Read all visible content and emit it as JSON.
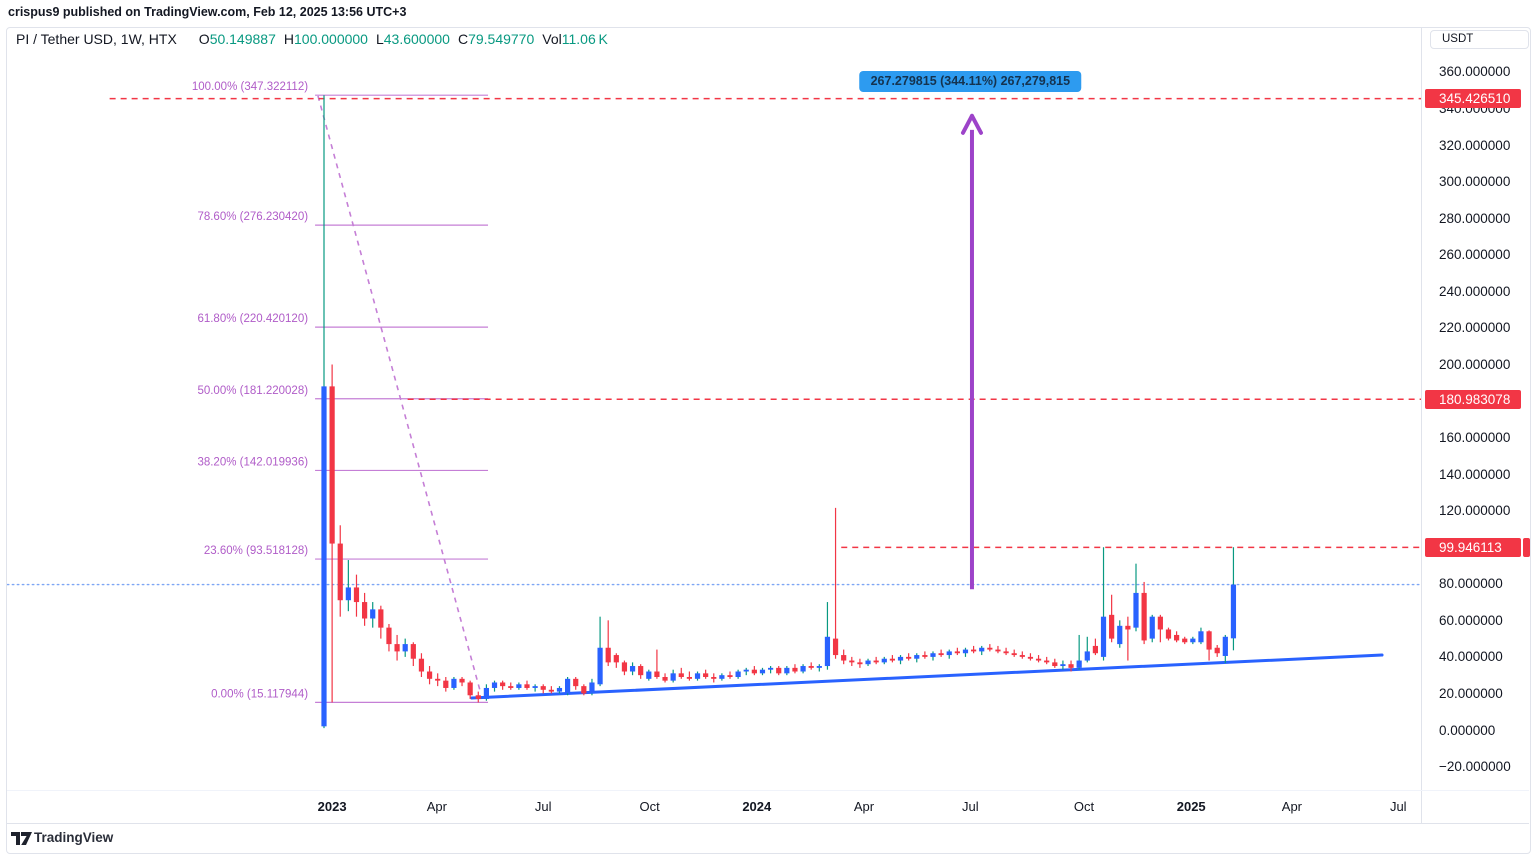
{
  "page": {
    "published_line": "crispus9 published on TradingView.com, Feb 12, 2025 13:56 UTC+3",
    "brand": "TradingView"
  },
  "legend": {
    "symbol": "PI / Tether USD, 1W, HTX",
    "items": [
      {
        "k": "O",
        "v": "50.149887"
      },
      {
        "k": "H",
        "v": "100.000000"
      },
      {
        "k": "L",
        "v": "43.600000"
      },
      {
        "k": "C",
        "v": "79.549770"
      },
      {
        "k": "Vol",
        "v": "11.06 K"
      }
    ]
  },
  "price_axis": {
    "currency_button": "USDT",
    "tick_format_decimals": 6
  },
  "colors": {
    "up_body": "#2962ff",
    "up_wick": "#089981",
    "down": "#f23645",
    "fib_line": "#c57fd6",
    "fib_label": "#b05cc8",
    "ray_red": "#f23645",
    "current_price_line": "#7da6f5",
    "trendline": "#2962ff",
    "arrow": "#9d43c9",
    "callout_bg": "#2d9bf0",
    "badge_bg": "#f23645",
    "axis_text": "#131722",
    "teal_text": "#089981",
    "border": "#e0e3eb"
  },
  "chart_data": {
    "type": "candlestick",
    "title": "PI / Tether USD, 1W, HTX",
    "symbol": "PI/USDT",
    "timeframe": "1W",
    "exchange": "HTX",
    "ylabel": "USDT",
    "ylim": [
      -33,
      384
    ],
    "y_ticks": [
      360,
      340,
      320,
      300,
      280,
      260,
      240,
      220,
      200,
      180,
      160,
      140,
      120,
      100,
      80,
      60,
      40,
      20,
      0,
      -20
    ],
    "time_axis": [
      {
        "label": "2023",
        "week": 1.0,
        "bold": true
      },
      {
        "label": "Apr",
        "week": 13.9,
        "bold": false
      },
      {
        "label": "Jul",
        "week": 27.0,
        "bold": false
      },
      {
        "label": "Oct",
        "week": 40.1,
        "bold": false
      },
      {
        "label": "2024",
        "week": 53.3,
        "bold": true
      },
      {
        "label": "Apr",
        "week": 66.5,
        "bold": false
      },
      {
        "label": "Jul",
        "week": 79.6,
        "bold": false
      },
      {
        "label": "Oct",
        "week": 93.6,
        "bold": false
      },
      {
        "label": "2025",
        "week": 106.8,
        "bold": true
      },
      {
        "label": "Apr",
        "week": 119.2,
        "bold": false
      },
      {
        "label": "Jul",
        "week": 132.3,
        "bold": false
      }
    ],
    "candles": [
      [
        2,
        347.3,
        1,
        188
      ],
      [
        188,
        200,
        15.1,
        102
      ],
      [
        102,
        112,
        62,
        71
      ],
      [
        71,
        93,
        65,
        78
      ],
      [
        78,
        85,
        62,
        70
      ],
      [
        70,
        75,
        57,
        61
      ],
      [
        61,
        70,
        56,
        66
      ],
      [
        66,
        68,
        50,
        56
      ],
      [
        56,
        58,
        43,
        47
      ],
      [
        47,
        52,
        38,
        43
      ],
      [
        43,
        50,
        40,
        47
      ],
      [
        47,
        48,
        35,
        39
      ],
      [
        39,
        42,
        29,
        32
      ],
      [
        32,
        35,
        25,
        28
      ],
      [
        28,
        31,
        24,
        27
      ],
      [
        27,
        29,
        21,
        23
      ],
      [
        23,
        29,
        22,
        28
      ],
      [
        28,
        29,
        24,
        26
      ],
      [
        26,
        27,
        17,
        19
      ],
      [
        19,
        21,
        15.1,
        17
      ],
      [
        17,
        25,
        16,
        23
      ],
      [
        23,
        27,
        21,
        26
      ],
      [
        26,
        27,
        22,
        24
      ],
      [
        24,
        26,
        22,
        23
      ],
      [
        23,
        26,
        22,
        25
      ],
      [
        25,
        27,
        22,
        23
      ],
      [
        23,
        25,
        21,
        24
      ],
      [
        24,
        25,
        20,
        22
      ],
      [
        22,
        24,
        20,
        21
      ],
      [
        21,
        24,
        20,
        23
      ],
      [
        20,
        29,
        19,
        28
      ],
      [
        28,
        29,
        22,
        24
      ],
      [
        24,
        25,
        19,
        20
      ],
      [
        20,
        28,
        19,
        26
      ],
      [
        25,
        62,
        24,
        45
      ],
      [
        45,
        60,
        35,
        37
      ],
      [
        41,
        42,
        34,
        37
      ],
      [
        37,
        38,
        30,
        32
      ],
      [
        32,
        37,
        30,
        35
      ],
      [
        35,
        36,
        28,
        30
      ],
      [
        28,
        33,
        27,
        32
      ],
      [
        32,
        44,
        28,
        29
      ],
      [
        29,
        31,
        26,
        27
      ],
      [
        27,
        33,
        26,
        31
      ],
      [
        31,
        34,
        28,
        29
      ],
      [
        29,
        32,
        27,
        28
      ],
      [
        28,
        32,
        27,
        31
      ],
      [
        31,
        33,
        28,
        29
      ],
      [
        29,
        31,
        26,
        28
      ],
      [
        28,
        31,
        27,
        30
      ],
      [
        30,
        32,
        28,
        29
      ],
      [
        29,
        33,
        28,
        32
      ],
      [
        32,
        34,
        30,
        33
      ],
      [
        33,
        35,
        30,
        31
      ],
      [
        31,
        34,
        30,
        33
      ],
      [
        33,
        35,
        31,
        34
      ],
      [
        34,
        35,
        30,
        31
      ],
      [
        31,
        35,
        30,
        34
      ],
      [
        34,
        36,
        31,
        32
      ],
      [
        32,
        36,
        31,
        35
      ],
      [
        35,
        37,
        33,
        34
      ],
      [
        34,
        36,
        32,
        35
      ],
      [
        35,
        70,
        33,
        51
      ],
      [
        50,
        121.5,
        39,
        41
      ],
      [
        41,
        44,
        36,
        38
      ],
      [
        38,
        40,
        35,
        37
      ],
      [
        37,
        39,
        34,
        36
      ],
      [
        36,
        39,
        35,
        38
      ],
      [
        38,
        40,
        36,
        37
      ],
      [
        37,
        40,
        36,
        39
      ],
      [
        39,
        41,
        37,
        38
      ],
      [
        38,
        41,
        36,
        40
      ],
      [
        40,
        42,
        38,
        39
      ],
      [
        39,
        42,
        37,
        41
      ],
      [
        41,
        43,
        39,
        40
      ],
      [
        40,
        43,
        38,
        42
      ],
      [
        42,
        44,
        40,
        41
      ],
      [
        41,
        44,
        39,
        43
      ],
      [
        43,
        45,
        41,
        42
      ],
      [
        42,
        45,
        40,
        44
      ],
      [
        44,
        46,
        42,
        43
      ],
      [
        43,
        46,
        41,
        45
      ],
      [
        45,
        47,
        43,
        44
      ],
      [
        44,
        46,
        42,
        43
      ],
      [
        43,
        45,
        41,
        42
      ],
      [
        42,
        44,
        40,
        41
      ],
      [
        41,
        43,
        39,
        40
      ],
      [
        40,
        42,
        38,
        39
      ],
      [
        39,
        41,
        37,
        38
      ],
      [
        38,
        40,
        36,
        37
      ],
      [
        37,
        39,
        34,
        35
      ],
      [
        35,
        38,
        33,
        36
      ],
      [
        36,
        38,
        32,
        34
      ],
      [
        34,
        52,
        33,
        38
      ],
      [
        38,
        51,
        37,
        43
      ],
      [
        46,
        50,
        41,
        42
      ],
      [
        40,
        100,
        38,
        62
      ],
      [
        63,
        74,
        48,
        50
      ],
      [
        47,
        60,
        45,
        57
      ],
      [
        57,
        62,
        38,
        55
      ],
      [
        56,
        91,
        54,
        75
      ],
      [
        75,
        81,
        47,
        49
      ],
      [
        50,
        63,
        48,
        62
      ],
      [
        62,
        63,
        48,
        55
      ],
      [
        55,
        56,
        49,
        50
      ],
      [
        52,
        54,
        48,
        49
      ],
      [
        50,
        51,
        47,
        48
      ],
      [
        48,
        51,
        47,
        50
      ],
      [
        48,
        56,
        47,
        54
      ],
      [
        54,
        54.5,
        38,
        44
      ],
      [
        45,
        46.5,
        40,
        42
      ],
      [
        40.5,
        52,
        36.6,
        51
      ],
      [
        50.149887,
        100,
        43.6,
        79.54977
      ]
    ],
    "fibonacci": {
      "x_start_week": -1.1,
      "x_end_week": 20.2,
      "levels": [
        {
          "pct": "100.00",
          "price": 347.322112
        },
        {
          "pct": "78.60",
          "price": 276.23042
        },
        {
          "pct": "61.80",
          "price": 220.42012
        },
        {
          "pct": "50.00",
          "price": 181.220028
        },
        {
          "pct": "38.20",
          "price": 142.019936
        },
        {
          "pct": "23.60",
          "price": 93.518128
        },
        {
          "pct": "0.00",
          "price": 15.117944
        }
      ],
      "anchor_line": {
        "from": {
          "week": -0.74,
          "price": 346.9
        },
        "to": {
          "week": 19.33,
          "price": 19.7
        }
      }
    },
    "horizontal_rays": [
      {
        "price": 345.42651,
        "start_week": -26.4
      },
      {
        "price": 180.983078,
        "start_week": 10.3
      },
      {
        "price": 99.946113,
        "start_week": 63.7
      }
    ],
    "current_price_line": {
      "price": 79.54977,
      "start_week": -39.0
    },
    "trendline": {
      "from": {
        "week": 18.2,
        "price": 17.5
      },
      "to": {
        "week": 130.3,
        "price": 41.0
      }
    },
    "arrow": {
      "week": 79.8,
      "price_from": 77.0,
      "price_to": 336.0
    },
    "callout": {
      "text": "267.279815 (344.11%) 267,279,815",
      "week": 79.6,
      "price": 354.5
    }
  }
}
